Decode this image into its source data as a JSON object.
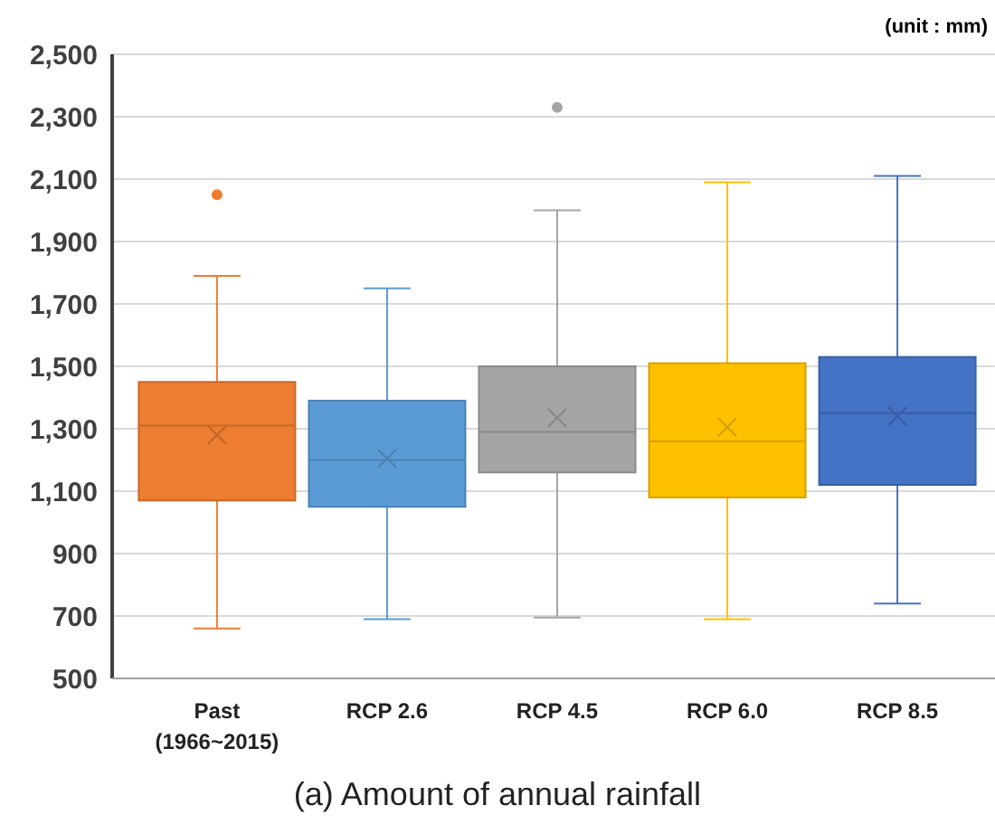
{
  "chart_data": {
    "type": "box",
    "title": "(a) Amount of annual rainfall",
    "annotations": [
      "(unit : mm)"
    ],
    "categories": [
      "Past (1966~2015)",
      "RCP 2.6",
      "RCP 4.5",
      "RCP 6.0",
      "RCP 8.5"
    ],
    "colors": [
      "#ed7d31",
      "#5b9bd5",
      "#a5a5a5",
      "#ffc000",
      "#4472c4"
    ],
    "boxes": [
      {
        "low": 660,
        "q1": 1070,
        "median": 1310,
        "q3": 1450,
        "high": 1790,
        "mean": 1280,
        "outliers": [
          2050
        ]
      },
      {
        "low": 690,
        "q1": 1050,
        "median": 1200,
        "q3": 1390,
        "high": 1750,
        "mean": 1205
      },
      {
        "low": 695,
        "q1": 1160,
        "median": 1290,
        "q3": 1500,
        "high": 2000,
        "mean": 1335,
        "outliers": [
          2330
        ]
      },
      {
        "low": 690,
        "q1": 1080,
        "median": 1260,
        "q3": 1510,
        "high": 2090,
        "mean": 1305
      },
      {
        "low": 740,
        "q1": 1120,
        "median": 1350,
        "q3": 1530,
        "high": 2110,
        "mean": 1340
      }
    ],
    "ylim": [
      500,
      2500
    ],
    "yticks": [
      {
        "value": 500,
        "label": "500"
      },
      {
        "value": 700,
        "label": "700"
      },
      {
        "value": 900,
        "label": "900"
      },
      {
        "value": 1100,
        "label": "1,100"
      },
      {
        "value": 1300,
        "label": "1,300"
      },
      {
        "value": 1500,
        "label": "1,500"
      },
      {
        "value": 1700,
        "label": "1,700"
      },
      {
        "value": 1900,
        "label": "1,900"
      },
      {
        "value": 2100,
        "label": "2,100"
      },
      {
        "value": 2300,
        "label": "2,300"
      },
      {
        "value": 2500,
        "label": "2,500"
      }
    ],
    "grid": "y",
    "marker": "cross"
  }
}
